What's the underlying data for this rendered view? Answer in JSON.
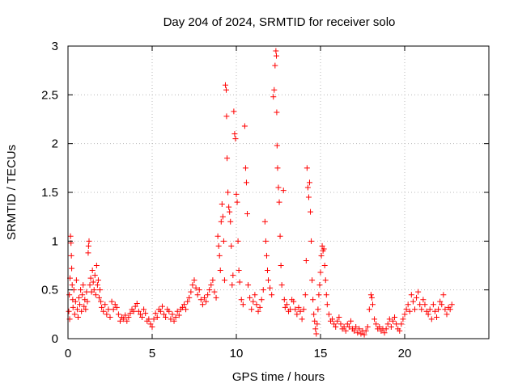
{
  "chart_data": {
    "type": "scatter",
    "title": "Day 204 of 2024, SRMTID for receiver solo",
    "xlabel": "GPS time / hours",
    "ylabel": "SRMTID / TECUs",
    "xlim": [
      0,
      25
    ],
    "ylim": [
      0,
      3
    ],
    "x_ticks": [
      0,
      5,
      10,
      15,
      20
    ],
    "x_tick_labels": [
      "0",
      "5",
      "10",
      "15",
      "20"
    ],
    "y_ticks": [
      0,
      0.5,
      1,
      1.5,
      2,
      2.5,
      3
    ],
    "y_tick_labels": [
      "0",
      "0.5",
      "1",
      "1.5",
      "2",
      "2.5",
      "3"
    ],
    "grid": true,
    "marker": "+",
    "marker_color": "#ff0000",
    "series": [
      {
        "name": "SRMTID",
        "points": [
          [
            0.05,
            0.28
          ],
          [
            0.08,
            0.45
          ],
          [
            0.1,
            0.2
          ],
          [
            0.12,
            0.62
          ],
          [
            0.15,
            1.05
          ],
          [
            0.18,
            0.98
          ],
          [
            0.2,
            0.85
          ],
          [
            0.22,
            0.72
          ],
          [
            0.25,
            0.55
          ],
          [
            0.28,
            0.4
          ],
          [
            0.3,
            0.32
          ],
          [
            0.35,
            0.5
          ],
          [
            0.4,
            0.25
          ],
          [
            0.45,
            0.38
          ],
          [
            0.5,
            0.6
          ],
          [
            0.55,
            0.3
          ],
          [
            0.6,
            0.22
          ],
          [
            0.65,
            0.42
          ],
          [
            0.7,
            0.35
          ],
          [
            0.75,
            0.5
          ],
          [
            0.8,
            0.28
          ],
          [
            0.85,
            0.45
          ],
          [
            0.9,
            0.55
          ],
          [
            0.95,
            0.33
          ],
          [
            1.0,
            0.4
          ],
          [
            1.05,
            0.3
          ],
          [
            1.1,
            0.48
          ],
          [
            1.15,
            0.38
          ],
          [
            1.2,
            0.88
          ],
          [
            1.22,
            0.95
          ],
          [
            1.25,
            1.0
          ],
          [
            1.3,
            0.55
          ],
          [
            1.35,
            0.62
          ],
          [
            1.4,
            0.48
          ],
          [
            1.45,
            0.7
          ],
          [
            1.5,
            0.58
          ],
          [
            1.55,
            0.5
          ],
          [
            1.6,
            0.65
          ],
          [
            1.65,
            0.45
          ],
          [
            1.7,
            0.75
          ],
          [
            1.75,
            0.55
          ],
          [
            1.8,
            0.6
          ],
          [
            1.85,
            0.42
          ],
          [
            1.9,
            0.5
          ],
          [
            1.95,
            0.38
          ],
          [
            2.0,
            0.32
          ],
          [
            2.1,
            0.28
          ],
          [
            2.2,
            0.35
          ],
          [
            2.3,
            0.25
          ],
          [
            2.4,
            0.3
          ],
          [
            2.5,
            0.22
          ],
          [
            2.6,
            0.38
          ],
          [
            2.7,
            0.3
          ],
          [
            2.8,
            0.35
          ],
          [
            2.9,
            0.32
          ],
          [
            3.0,
            0.25
          ],
          [
            3.1,
            0.18
          ],
          [
            3.2,
            0.22
          ],
          [
            3.3,
            0.2
          ],
          [
            3.4,
            0.24
          ],
          [
            3.5,
            0.18
          ],
          [
            3.6,
            0.22
          ],
          [
            3.7,
            0.26
          ],
          [
            3.8,
            0.3
          ],
          [
            3.9,
            0.28
          ],
          [
            4.0,
            0.33
          ],
          [
            4.1,
            0.36
          ],
          [
            4.2,
            0.28
          ],
          [
            4.3,
            0.25
          ],
          [
            4.4,
            0.22
          ],
          [
            4.5,
            0.3
          ],
          [
            4.6,
            0.26
          ],
          [
            4.7,
            0.18
          ],
          [
            4.8,
            0.2
          ],
          [
            4.9,
            0.15
          ],
          [
            5.0,
            0.12
          ],
          [
            5.1,
            0.2
          ],
          [
            5.2,
            0.26
          ],
          [
            5.3,
            0.22
          ],
          [
            5.4,
            0.3
          ],
          [
            5.5,
            0.28
          ],
          [
            5.6,
            0.33
          ],
          [
            5.7,
            0.25
          ],
          [
            5.8,
            0.22
          ],
          [
            5.9,
            0.3
          ],
          [
            6.0,
            0.28
          ],
          [
            6.1,
            0.2
          ],
          [
            6.2,
            0.25
          ],
          [
            6.3,
            0.18
          ],
          [
            6.4,
            0.22
          ],
          [
            6.5,
            0.28
          ],
          [
            6.6,
            0.24
          ],
          [
            6.7,
            0.3
          ],
          [
            6.8,
            0.32
          ],
          [
            6.9,
            0.35
          ],
          [
            7.0,
            0.3
          ],
          [
            7.1,
            0.38
          ],
          [
            7.2,
            0.42
          ],
          [
            7.3,
            0.48
          ],
          [
            7.4,
            0.55
          ],
          [
            7.5,
            0.6
          ],
          [
            7.6,
            0.52
          ],
          [
            7.7,
            0.45
          ],
          [
            7.8,
            0.5
          ],
          [
            7.9,
            0.4
          ],
          [
            8.0,
            0.35
          ],
          [
            8.1,
            0.42
          ],
          [
            8.2,
            0.38
          ],
          [
            8.3,
            0.45
          ],
          [
            8.4,
            0.5
          ],
          [
            8.5,
            0.55
          ],
          [
            8.6,
            0.6
          ],
          [
            8.7,
            0.48
          ],
          [
            8.8,
            0.42
          ],
          [
            8.9,
            1.05
          ],
          [
            8.95,
            0.95
          ],
          [
            9.0,
            0.85
          ],
          [
            9.05,
            0.7
          ],
          [
            9.1,
            1.2
          ],
          [
            9.15,
            1.38
          ],
          [
            9.2,
            1.25
          ],
          [
            9.25,
            1.0
          ],
          [
            9.3,
            0.6
          ],
          [
            9.35,
            2.6
          ],
          [
            9.4,
            2.55
          ],
          [
            9.42,
            2.28
          ],
          [
            9.45,
            1.85
          ],
          [
            9.5,
            1.5
          ],
          [
            9.55,
            1.35
          ],
          [
            9.6,
            1.3
          ],
          [
            9.65,
            1.2
          ],
          [
            9.7,
            0.95
          ],
          [
            9.75,
            0.55
          ],
          [
            9.8,
            0.65
          ],
          [
            9.85,
            2.33
          ],
          [
            9.9,
            2.1
          ],
          [
            9.95,
            2.05
          ],
          [
            10.0,
            1.48
          ],
          [
            10.05,
            1.4
          ],
          [
            10.1,
            1.0
          ],
          [
            10.15,
            0.7
          ],
          [
            10.2,
            0.58
          ],
          [
            10.3,
            0.4
          ],
          [
            10.4,
            0.35
          ],
          [
            10.5,
            2.18
          ],
          [
            10.55,
            1.75
          ],
          [
            10.6,
            1.6
          ],
          [
            10.65,
            1.28
          ],
          [
            10.7,
            0.55
          ],
          [
            10.8,
            0.42
          ],
          [
            10.9,
            0.3
          ],
          [
            11.0,
            0.38
          ],
          [
            11.1,
            0.45
          ],
          [
            11.2,
            0.35
          ],
          [
            11.3,
            0.28
          ],
          [
            11.4,
            0.32
          ],
          [
            11.5,
            0.4
          ],
          [
            11.6,
            0.5
          ],
          [
            11.7,
            1.2
          ],
          [
            11.75,
            1.0
          ],
          [
            11.8,
            0.85
          ],
          [
            11.85,
            0.7
          ],
          [
            11.9,
            0.6
          ],
          [
            12.0,
            0.52
          ],
          [
            12.1,
            0.45
          ],
          [
            12.2,
            2.48
          ],
          [
            12.25,
            2.55
          ],
          [
            12.3,
            2.8
          ],
          [
            12.35,
            2.95
          ],
          [
            12.38,
            2.9
          ],
          [
            12.4,
            2.32
          ],
          [
            12.42,
            1.98
          ],
          [
            12.45,
            1.75
          ],
          [
            12.5,
            1.55
          ],
          [
            12.55,
            1.4
          ],
          [
            12.6,
            1.05
          ],
          [
            12.65,
            0.75
          ],
          [
            12.7,
            0.55
          ],
          [
            12.8,
            1.52
          ],
          [
            12.85,
            0.4
          ],
          [
            12.9,
            0.32
          ],
          [
            13.0,
            0.35
          ],
          [
            13.1,
            0.28
          ],
          [
            13.2,
            0.3
          ],
          [
            13.3,
            0.4
          ],
          [
            13.4,
            0.38
          ],
          [
            13.5,
            0.3
          ],
          [
            13.6,
            0.25
          ],
          [
            13.7,
            0.32
          ],
          [
            13.8,
            0.28
          ],
          [
            13.9,
            0.2
          ],
          [
            14.0,
            0.3
          ],
          [
            14.1,
            0.45
          ],
          [
            14.15,
            0.8
          ],
          [
            14.2,
            1.75
          ],
          [
            14.25,
            1.55
          ],
          [
            14.3,
            1.45
          ],
          [
            14.35,
            1.6
          ],
          [
            14.4,
            1.3
          ],
          [
            14.45,
            1.0
          ],
          [
            14.5,
            0.6
          ],
          [
            14.55,
            0.4
          ],
          [
            14.6,
            0.25
          ],
          [
            14.65,
            0.18
          ],
          [
            14.7,
            0.1
          ],
          [
            14.75,
            0.05
          ],
          [
            14.8,
            0.15
          ],
          [
            14.85,
            0.3
          ],
          [
            14.9,
            0.45
          ],
          [
            14.95,
            0.55
          ],
          [
            15.0,
            0.68
          ],
          [
            15.05,
            0.85
          ],
          [
            15.1,
            0.95
          ],
          [
            15.15,
            0.9
          ],
          [
            15.2,
            0.92
          ],
          [
            15.25,
            0.75
          ],
          [
            15.3,
            0.6
          ],
          [
            15.35,
            0.45
          ],
          [
            15.4,
            0.35
          ],
          [
            15.5,
            0.25
          ],
          [
            15.6,
            0.18
          ],
          [
            15.7,
            0.2
          ],
          [
            15.8,
            0.15
          ],
          [
            15.9,
            0.12
          ],
          [
            16.0,
            0.18
          ],
          [
            16.1,
            0.22
          ],
          [
            16.2,
            0.15
          ],
          [
            16.3,
            0.1
          ],
          [
            16.4,
            0.12
          ],
          [
            16.5,
            0.08
          ],
          [
            16.6,
            0.15
          ],
          [
            16.7,
            0.12
          ],
          [
            16.8,
            0.18
          ],
          [
            16.9,
            0.1
          ],
          [
            17.0,
            0.08
          ],
          [
            17.1,
            0.12
          ],
          [
            17.2,
            0.06
          ],
          [
            17.3,
            0.1
          ],
          [
            17.4,
            0.05
          ],
          [
            17.5,
            0.08
          ],
          [
            17.6,
            0.04
          ],
          [
            17.7,
            0.08
          ],
          [
            17.8,
            0.12
          ],
          [
            17.9,
            0.3
          ],
          [
            18.0,
            0.45
          ],
          [
            18.05,
            0.42
          ],
          [
            18.1,
            0.35
          ],
          [
            18.2,
            0.2
          ],
          [
            18.3,
            0.15
          ],
          [
            18.4,
            0.1
          ],
          [
            18.5,
            0.12
          ],
          [
            18.6,
            0.08
          ],
          [
            18.7,
            0.1
          ],
          [
            18.8,
            0.06
          ],
          [
            18.9,
            0.1
          ],
          [
            19.0,
            0.15
          ],
          [
            19.1,
            0.2
          ],
          [
            19.2,
            0.12
          ],
          [
            19.3,
            0.18
          ],
          [
            19.4,
            0.22
          ],
          [
            19.5,
            0.15
          ],
          [
            19.6,
            0.1
          ],
          [
            19.7,
            0.08
          ],
          [
            19.8,
            0.15
          ],
          [
            19.9,
            0.2
          ],
          [
            20.0,
            0.25
          ],
          [
            20.1,
            0.3
          ],
          [
            20.2,
            0.35
          ],
          [
            20.3,
            0.28
          ],
          [
            20.4,
            0.45
          ],
          [
            20.5,
            0.38
          ],
          [
            20.6,
            0.3
          ],
          [
            20.7,
            0.42
          ],
          [
            20.8,
            0.48
          ],
          [
            20.9,
            0.35
          ],
          [
            21.0,
            0.3
          ],
          [
            21.1,
            0.4
          ],
          [
            21.2,
            0.35
          ],
          [
            21.3,
            0.28
          ],
          [
            21.4,
            0.25
          ],
          [
            21.5,
            0.3
          ],
          [
            21.6,
            0.2
          ],
          [
            21.7,
            0.35
          ],
          [
            21.8,
            0.28
          ],
          [
            21.9,
            0.22
          ],
          [
            22.0,
            0.3
          ],
          [
            22.1,
            0.38
          ],
          [
            22.2,
            0.35
          ],
          [
            22.3,
            0.45
          ],
          [
            22.4,
            0.3
          ],
          [
            22.5,
            0.25
          ],
          [
            22.6,
            0.32
          ],
          [
            22.7,
            0.3
          ],
          [
            22.8,
            0.35
          ]
        ]
      }
    ]
  }
}
